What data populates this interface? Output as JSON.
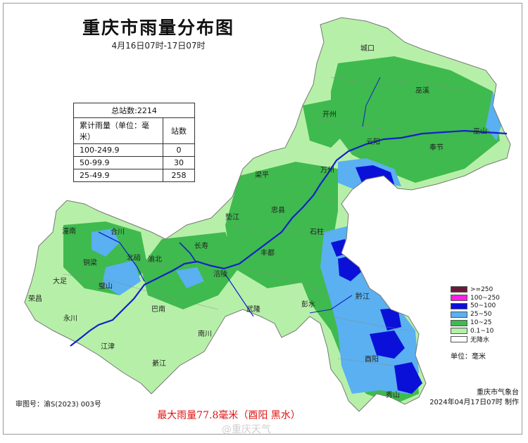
{
  "title": "重庆市雨量分布图",
  "subtitle": "4月16日07时-17日07时",
  "stats": {
    "total_stations": "总站数:2214",
    "col_range": "累计雨量（单位：毫米）",
    "col_count": "站数",
    "rows": [
      {
        "range": "100-249.9",
        "count": "0"
      },
      {
        "range": "50-99.9",
        "count": "30"
      },
      {
        "range": "25-49.9",
        "count": "258"
      }
    ]
  },
  "legend": {
    "items": [
      {
        "label": ">=250",
        "color": "#6b1a3a"
      },
      {
        "label": "100~250",
        "color": "#ff1ee6"
      },
      {
        "label": "50~100",
        "color": "#0a10d8"
      },
      {
        "label": "25~50",
        "color": "#5ab0f0"
      },
      {
        "label": "10~25",
        "color": "#3fba4e"
      },
      {
        "label": "0.1~10",
        "color": "#b6f0a8"
      },
      {
        "label": "无降水",
        "color": "#ffffff"
      }
    ],
    "unit": "单位：毫米"
  },
  "places": [
    {
      "name": "城口"
    },
    {
      "name": "巫溪"
    },
    {
      "name": "巫山"
    },
    {
      "name": "开州"
    },
    {
      "name": "云阳"
    },
    {
      "name": "奉节"
    },
    {
      "name": "万州"
    },
    {
      "name": "梁平"
    },
    {
      "name": "忠县"
    },
    {
      "name": "垫江"
    },
    {
      "name": "石柱"
    },
    {
      "name": "长寿"
    },
    {
      "name": "丰都"
    },
    {
      "name": "涪陵"
    },
    {
      "name": "潼南"
    },
    {
      "name": "合川"
    },
    {
      "name": "北碚"
    },
    {
      "name": "渝北"
    },
    {
      "name": "铜梁"
    },
    {
      "name": "大足"
    },
    {
      "name": "璧山"
    },
    {
      "name": "荣昌"
    },
    {
      "name": "永川"
    },
    {
      "name": "巴南"
    },
    {
      "name": "武隆"
    },
    {
      "name": "彭水"
    },
    {
      "name": "黔江"
    },
    {
      "name": "南川"
    },
    {
      "name": "江津"
    },
    {
      "name": "綦江"
    },
    {
      "name": "酉阳"
    },
    {
      "name": "秀山"
    }
  ],
  "issuer": {
    "org": "重庆市气象台",
    "time": "2024年04月17日07时 制作"
  },
  "map_no": "审图号：渝S(2023) 003号",
  "max_rain": "最大雨量77.8毫米（酉阳 黑水）",
  "watermark": "@重庆天气"
}
